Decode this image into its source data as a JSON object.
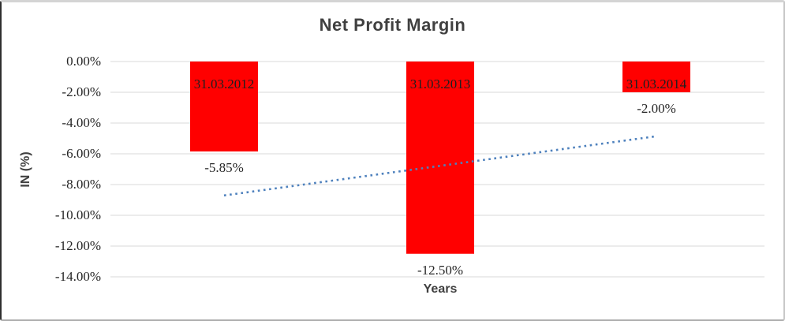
{
  "chart_data": {
    "type": "bar",
    "title": "Net Profit Margin",
    "xlabel": "Years",
    "ylabel": "IN (%)",
    "categories": [
      "31.03.2012",
      "31.03.2013",
      "31.03.2014"
    ],
    "series": [
      {
        "name": "Net Profit Margin",
        "values": [
          -5.85,
          -12.5,
          -2.0
        ]
      }
    ],
    "data_labels": [
      "-5.85%",
      "-12.50%",
      "-2.00%"
    ],
    "y_ticks": [
      "0.00%",
      "-2.00%",
      "-4.00%",
      "-6.00%",
      "-8.00%",
      "-10.00%",
      "-12.00%",
      "-14.00%"
    ],
    "ylim": [
      -14,
      0
    ],
    "grid": true,
    "legend": "none",
    "trendline": {
      "type": "linear",
      "style": "dotted",
      "endpoints_pct": [
        -8.71,
        -4.86
      ]
    },
    "colors": {
      "bar": "#FF0000",
      "trendline": "#4E81BD",
      "gridline": "#D9D9D9",
      "title": "#404040",
      "tick_text": "#262626"
    }
  }
}
